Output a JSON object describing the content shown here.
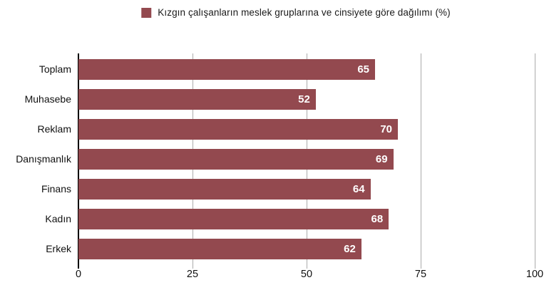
{
  "chart_data": {
    "type": "bar",
    "orientation": "horizontal",
    "title": "",
    "legend_label": "Kızgın çalışanların meslek gruplarına ve cinsiyete göre dağılımı (%)",
    "legend_position": "top-center",
    "categories": [
      "Toplam",
      "Muhasebe",
      "Reklam",
      "Danışmanlık",
      "Finans",
      "Kadın",
      "Erkek"
    ],
    "values": [
      65,
      52,
      70,
      69,
      64,
      68,
      62
    ],
    "value_labels_inside_bars": true,
    "x_ticks": [
      0,
      25,
      50,
      75,
      100
    ],
    "xlim": [
      0,
      100
    ],
    "xlabel": "",
    "ylabel": "",
    "grid": "vertical",
    "colors": {
      "bar": "#93494F",
      "value_label": "#ffffff",
      "gridline": "#ababab",
      "zero_axis": "#000000",
      "text": "#111111"
    }
  }
}
